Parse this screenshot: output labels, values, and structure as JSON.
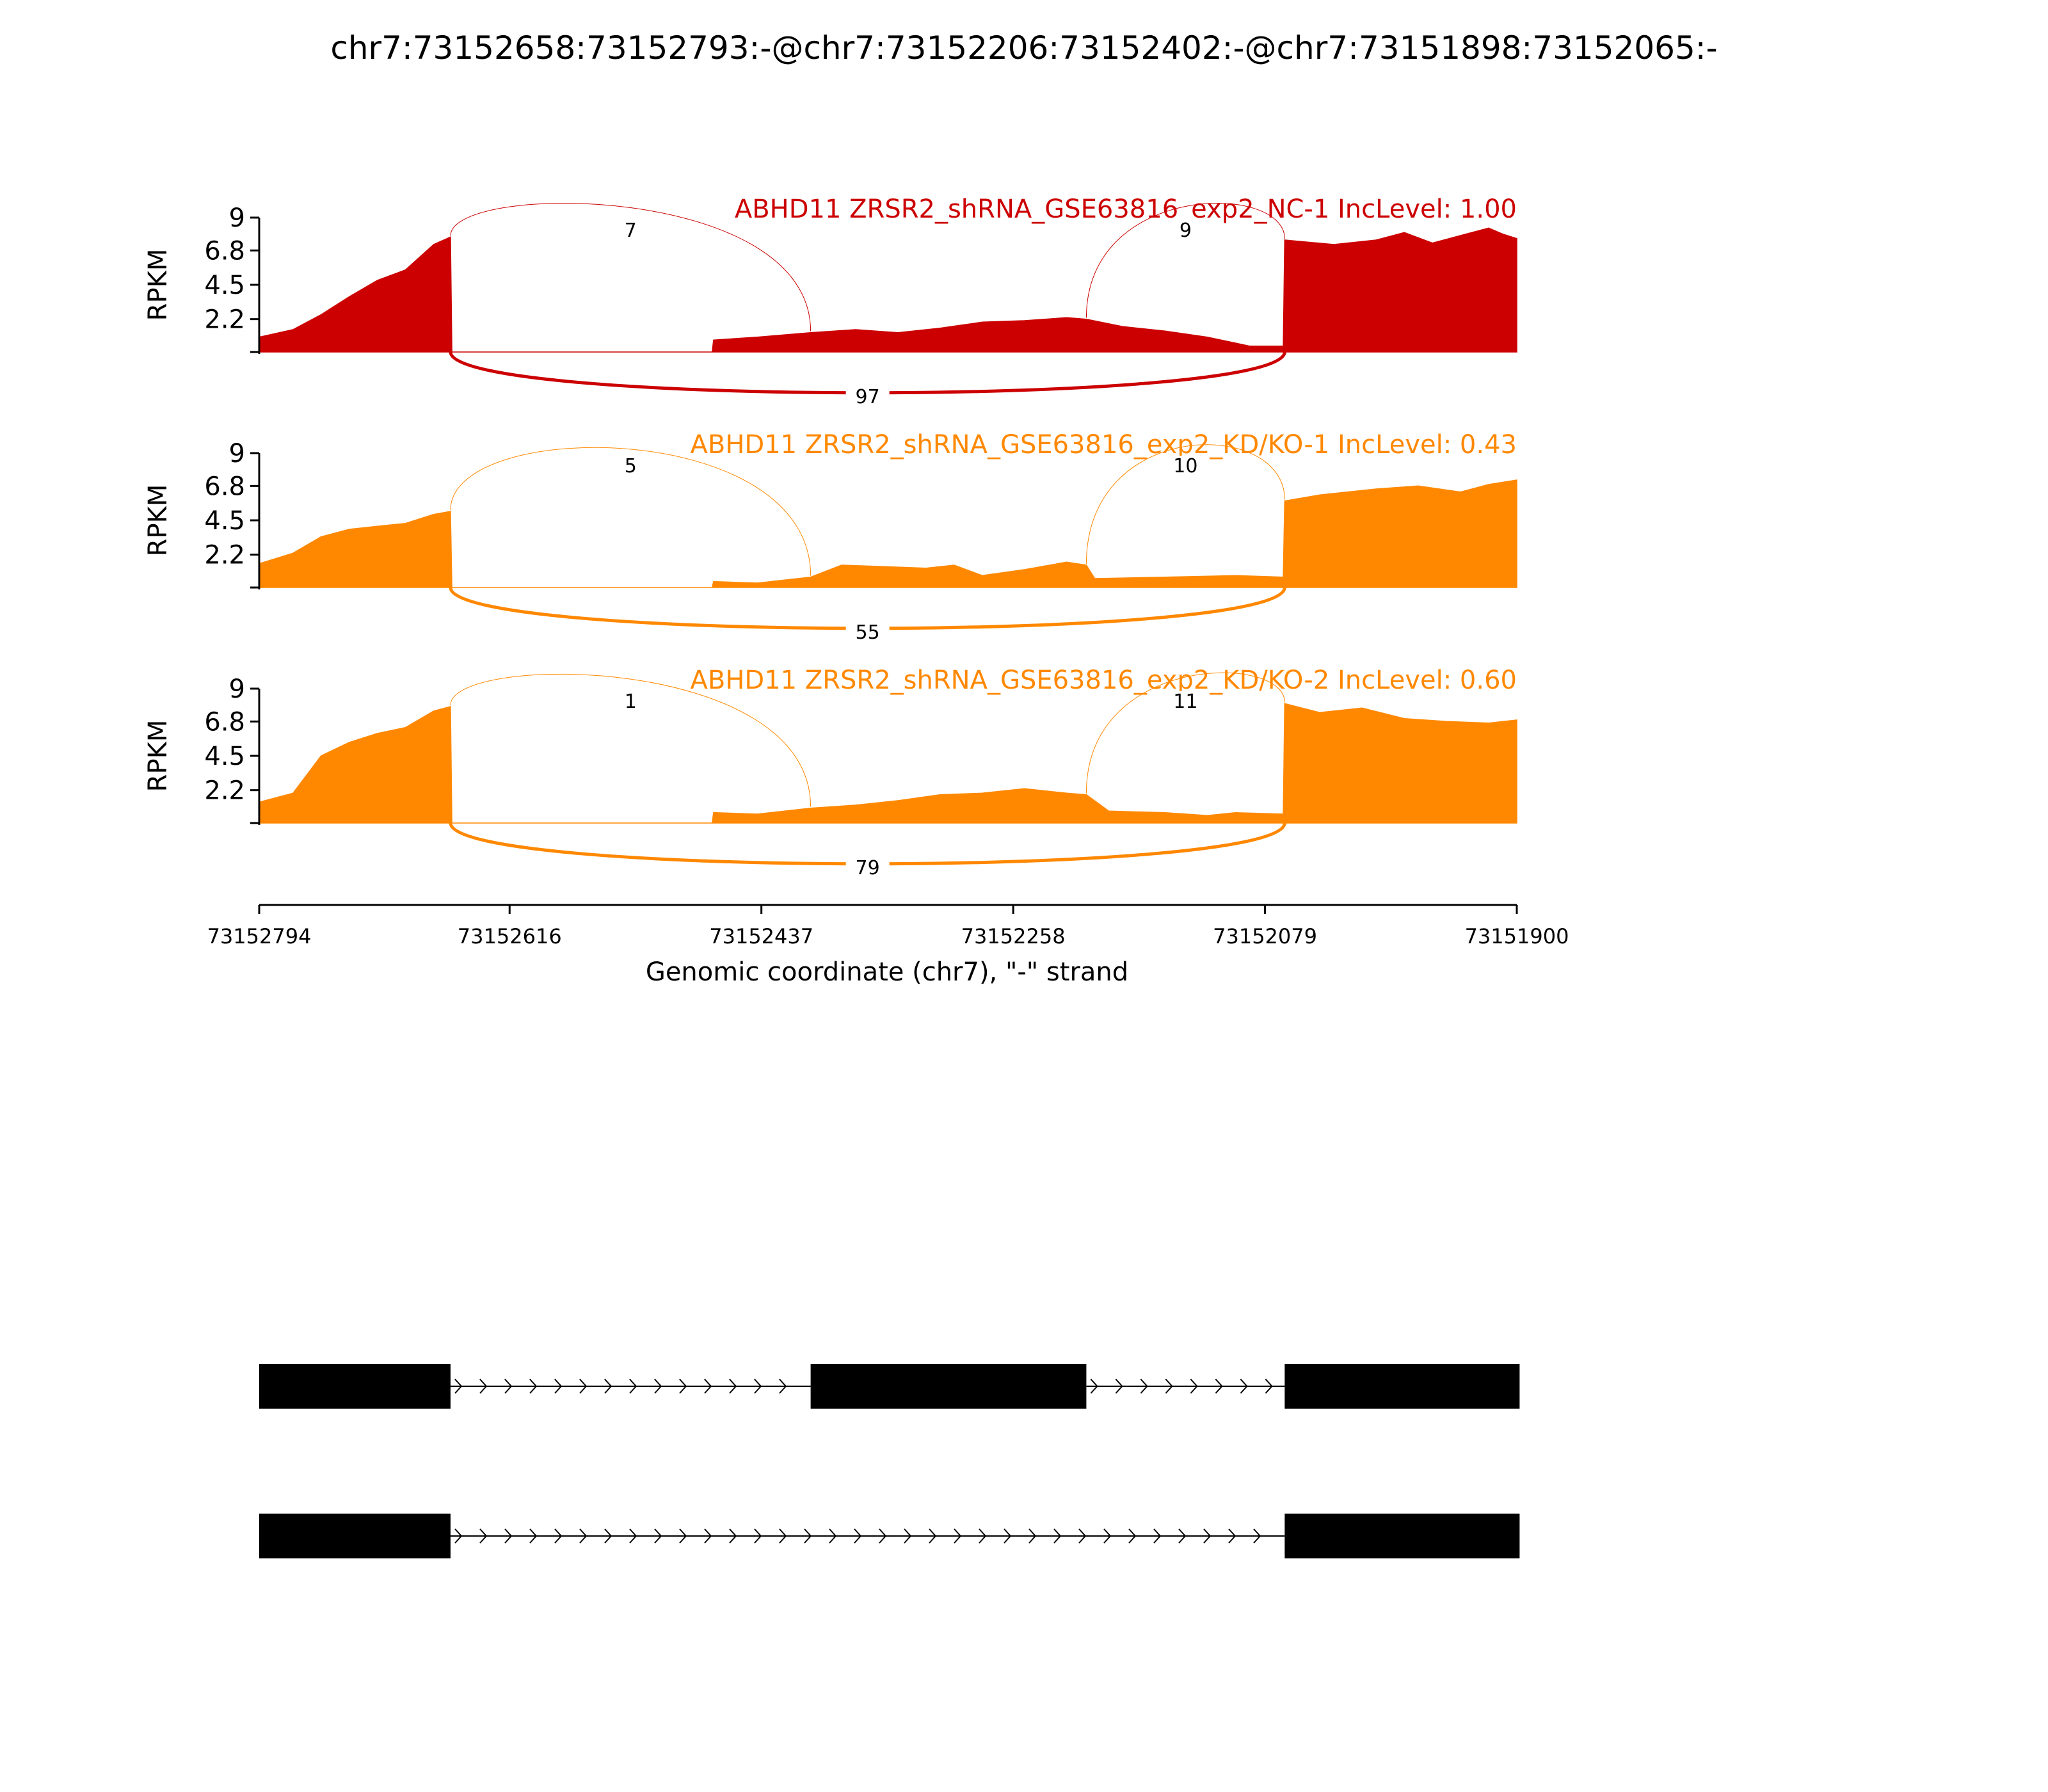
{
  "title": "chr7:73152658:73152793:-@chr7:73152206:73152402:-@chr7:73151898:73152065:-",
  "colors": {
    "nc": "#CC0000",
    "kd": "#FF8800",
    "axis": "#000000",
    "exon": "#000000"
  },
  "chart_data": {
    "type": "area",
    "plot_kind": "sashimi",
    "x_label": "Genomic coordinate (chr7), \"-\" strand",
    "x_reversed": true,
    "xlim": [
      73152794,
      73151900
    ],
    "x_ticks": [
      "73152794",
      "73152616",
      "73152437",
      "73152258",
      "73152079",
      "73151900"
    ],
    "y_label": "RPKM",
    "y_ticks": [
      "9",
      "6.8",
      "4.5",
      "2.2"
    ],
    "ylim": [
      0,
      9
    ],
    "exons": [
      {
        "start": 73152794,
        "end": 73152658
      },
      {
        "start": 73152402,
        "end": 73152206
      },
      {
        "start": 73152065,
        "end": 73151898
      }
    ],
    "isoforms": [
      {
        "exons": [
          0,
          1,
          2
        ]
      },
      {
        "exons": [
          0,
          2
        ]
      }
    ],
    "series": [
      {
        "name": "ABHD11 ZRSR2_shRNA_GSE63816_exp2_NC-1 IncLevel: 1.00",
        "color_key": "nc",
        "profile": [
          {
            "x": 73152794,
            "y": 1.0
          },
          {
            "x": 73152770,
            "y": 1.5
          },
          {
            "x": 73152750,
            "y": 2.5
          },
          {
            "x": 73152730,
            "y": 3.7
          },
          {
            "x": 73152710,
            "y": 4.8
          },
          {
            "x": 73152690,
            "y": 5.5
          },
          {
            "x": 73152670,
            "y": 7.2
          },
          {
            "x": 73152658,
            "y": 7.7
          },
          {
            "x": 73152657,
            "y": 0.0
          },
          {
            "x": 73152472,
            "y": 0.0
          },
          {
            "x": 73152471,
            "y": 0.8
          },
          {
            "x": 73152440,
            "y": 1.0
          },
          {
            "x": 73152402,
            "y": 1.3
          },
          {
            "x": 73152370,
            "y": 1.5
          },
          {
            "x": 73152340,
            "y": 1.3
          },
          {
            "x": 73152310,
            "y": 1.6
          },
          {
            "x": 73152280,
            "y": 2.0
          },
          {
            "x": 73152250,
            "y": 2.1
          },
          {
            "x": 73152220,
            "y": 2.3
          },
          {
            "x": 73152206,
            "y": 2.2
          },
          {
            "x": 73152180,
            "y": 1.7
          },
          {
            "x": 73152150,
            "y": 1.4
          },
          {
            "x": 73152120,
            "y": 1.0
          },
          {
            "x": 73152100,
            "y": 0.6
          },
          {
            "x": 73152090,
            "y": 0.4
          },
          {
            "x": 73152066,
            "y": 0.4
          },
          {
            "x": 73152065,
            "y": 7.5
          },
          {
            "x": 73152030,
            "y": 7.2
          },
          {
            "x": 73152000,
            "y": 7.5
          },
          {
            "x": 73151980,
            "y": 8.0
          },
          {
            "x": 73151960,
            "y": 7.3
          },
          {
            "x": 73151940,
            "y": 7.8
          },
          {
            "x": 73151920,
            "y": 8.3
          },
          {
            "x": 73151910,
            "y": 7.9
          },
          {
            "x": 73151900,
            "y": 7.6
          }
        ],
        "junctions": [
          {
            "from": 73152658,
            "to": 73152402,
            "count": "7",
            "side": "above"
          },
          {
            "from": 73152206,
            "to": 73152065,
            "count": "9",
            "side": "above"
          },
          {
            "from": 73152658,
            "to": 73152065,
            "count": "97",
            "side": "below"
          }
        ]
      },
      {
        "name": "ABHD11 ZRSR2_shRNA_GSE63816_exp2_KD/KO-1 IncLevel: 0.43",
        "color_key": "kd",
        "profile": [
          {
            "x": 73152794,
            "y": 1.6
          },
          {
            "x": 73152770,
            "y": 2.3
          },
          {
            "x": 73152750,
            "y": 3.4
          },
          {
            "x": 73152730,
            "y": 3.9
          },
          {
            "x": 73152710,
            "y": 4.1
          },
          {
            "x": 73152690,
            "y": 4.3
          },
          {
            "x": 73152670,
            "y": 4.9
          },
          {
            "x": 73152658,
            "y": 5.1
          },
          {
            "x": 73152657,
            "y": 0.0
          },
          {
            "x": 73152472,
            "y": 0.0
          },
          {
            "x": 73152471,
            "y": 0.4
          },
          {
            "x": 73152440,
            "y": 0.3
          },
          {
            "x": 73152402,
            "y": 0.7
          },
          {
            "x": 73152380,
            "y": 1.5
          },
          {
            "x": 73152350,
            "y": 1.4
          },
          {
            "x": 73152320,
            "y": 1.3
          },
          {
            "x": 73152300,
            "y": 1.5
          },
          {
            "x": 73152280,
            "y": 0.8
          },
          {
            "x": 73152250,
            "y": 1.2
          },
          {
            "x": 73152220,
            "y": 1.7
          },
          {
            "x": 73152206,
            "y": 1.5
          },
          {
            "x": 73152200,
            "y": 0.6
          },
          {
            "x": 73152150,
            "y": 0.7
          },
          {
            "x": 73152100,
            "y": 0.8
          },
          {
            "x": 73152066,
            "y": 0.7
          },
          {
            "x": 73152065,
            "y": 5.8
          },
          {
            "x": 73152040,
            "y": 6.2
          },
          {
            "x": 73152000,
            "y": 6.6
          },
          {
            "x": 73151970,
            "y": 6.8
          },
          {
            "x": 73151940,
            "y": 6.4
          },
          {
            "x": 73151920,
            "y": 6.9
          },
          {
            "x": 73151900,
            "y": 7.2
          }
        ],
        "junctions": [
          {
            "from": 73152658,
            "to": 73152402,
            "count": "5",
            "side": "above"
          },
          {
            "from": 73152206,
            "to": 73152065,
            "count": "10",
            "side": "above"
          },
          {
            "from": 73152658,
            "to": 73152065,
            "count": "55",
            "side": "below"
          }
        ]
      },
      {
        "name": "ABHD11 ZRSR2_shRNA_GSE63816_exp2_KD/KO-2 IncLevel: 0.60",
        "color_key": "kd",
        "profile": [
          {
            "x": 73152794,
            "y": 1.4
          },
          {
            "x": 73152770,
            "y": 2.0
          },
          {
            "x": 73152750,
            "y": 4.5
          },
          {
            "x": 73152730,
            "y": 5.4
          },
          {
            "x": 73152710,
            "y": 6.0
          },
          {
            "x": 73152690,
            "y": 6.4
          },
          {
            "x": 73152670,
            "y": 7.5
          },
          {
            "x": 73152658,
            "y": 7.8
          },
          {
            "x": 73152657,
            "y": 0.0
          },
          {
            "x": 73152472,
            "y": 0.0
          },
          {
            "x": 73152471,
            "y": 0.7
          },
          {
            "x": 73152440,
            "y": 0.6
          },
          {
            "x": 73152402,
            "y": 1.0
          },
          {
            "x": 73152370,
            "y": 1.2
          },
          {
            "x": 73152340,
            "y": 1.5
          },
          {
            "x": 73152310,
            "y": 1.9
          },
          {
            "x": 73152280,
            "y": 2.0
          },
          {
            "x": 73152250,
            "y": 2.3
          },
          {
            "x": 73152220,
            "y": 2.0
          },
          {
            "x": 73152206,
            "y": 1.9
          },
          {
            "x": 73152190,
            "y": 0.8
          },
          {
            "x": 73152150,
            "y": 0.7
          },
          {
            "x": 73152120,
            "y": 0.5
          },
          {
            "x": 73152100,
            "y": 0.7
          },
          {
            "x": 73152066,
            "y": 0.6
          },
          {
            "x": 73152065,
            "y": 8.0
          },
          {
            "x": 73152040,
            "y": 7.4
          },
          {
            "x": 73152010,
            "y": 7.7
          },
          {
            "x": 73151980,
            "y": 7.0
          },
          {
            "x": 73151950,
            "y": 6.8
          },
          {
            "x": 73151920,
            "y": 6.7
          },
          {
            "x": 73151900,
            "y": 6.9
          }
        ],
        "junctions": [
          {
            "from": 73152658,
            "to": 73152402,
            "count": "1",
            "side": "above"
          },
          {
            "from": 73152206,
            "to": 73152065,
            "count": "11",
            "side": "above"
          },
          {
            "from": 73152658,
            "to": 73152065,
            "count": "79",
            "side": "below"
          }
        ]
      }
    ]
  }
}
